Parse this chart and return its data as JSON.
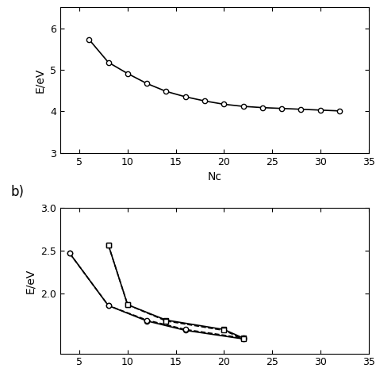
{
  "panel_a": {
    "xlabel": "Nc",
    "ylabel": "E/eV",
    "ylim": [
      3,
      6.5
    ],
    "xlim": [
      3,
      35
    ],
    "xticks": [
      5,
      10,
      15,
      20,
      25,
      30,
      35
    ],
    "yticks": [
      3,
      4,
      5,
      6
    ],
    "x": [
      6,
      8,
      10,
      12,
      14,
      16,
      18,
      20,
      22,
      24,
      26,
      28,
      30,
      32
    ],
    "y": [
      5.73,
      5.18,
      4.91,
      4.67,
      4.48,
      4.35,
      4.25,
      4.17,
      4.12,
      4.09,
      4.07,
      4.05,
      4.03,
      4.01
    ]
  },
  "panel_b": {
    "xlabel": "",
    "ylabel": "E/eV",
    "ylim": [
      1.3,
      3.0
    ],
    "xlim": [
      3,
      35
    ],
    "xticks": [
      5,
      10,
      15,
      20,
      25,
      30,
      35
    ],
    "yticks": [
      2.0,
      2.5,
      3.0
    ],
    "label_b": "b)",
    "series": [
      {
        "x": [
          4,
          8,
          12,
          16,
          22
        ],
        "y": [
          2.47,
          1.86,
          1.68,
          1.57,
          1.47
        ],
        "linestyle": "-",
        "marker": "o"
      },
      {
        "x": [
          8,
          10,
          14,
          20,
          22
        ],
        "y": [
          2.57,
          1.87,
          1.69,
          1.58,
          1.48
        ],
        "linestyle": "-",
        "marker": "s"
      },
      {
        "x": [
          4,
          8,
          12,
          16,
          22
        ],
        "y": [
          2.47,
          1.86,
          1.69,
          1.58,
          1.48
        ],
        "linestyle": "--",
        "marker": "o"
      },
      {
        "x": [
          8,
          10,
          14,
          20,
          22
        ],
        "y": [
          2.57,
          1.87,
          1.68,
          1.57,
          1.47
        ],
        "linestyle": "--",
        "marker": "s"
      }
    ]
  },
  "figure": {
    "bg_color": "#ffffff",
    "line_color": "#000000",
    "figsize": [
      4.74,
      4.74
    ],
    "dpi": 100
  }
}
